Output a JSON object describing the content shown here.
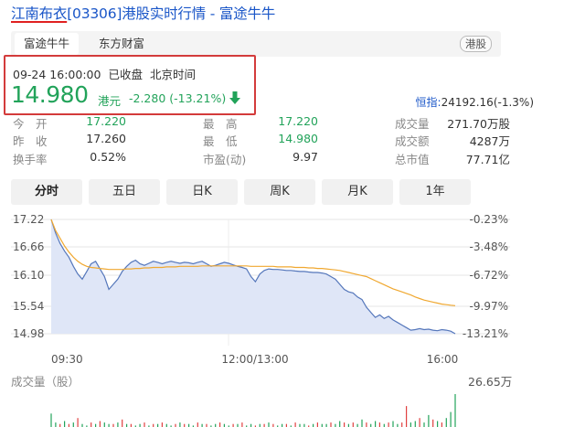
{
  "header": {
    "stock_name": "江南布衣",
    "code": "[03306]",
    "suffix": "港股实时行情 - 富途牛牛"
  },
  "tabs": [
    {
      "label": "富途牛牛",
      "active": true
    },
    {
      "label": "东方财富",
      "active": false
    }
  ],
  "market_badge": "港股",
  "quote": {
    "datetime": "09-24 16:00:00",
    "status": "已收盘",
    "timezone": "北京时间",
    "price": "14.980",
    "currency": "港元",
    "change": "-2.280 (-13.21%)",
    "direction_icon": "down-arrow-icon",
    "color": "#22a35a"
  },
  "index": {
    "label": "恒指:",
    "value": "24192.16(-1.3%)"
  },
  "stats": [
    [
      {
        "label": "今　开",
        "value": "17.220"
      },
      {
        "label": "最　高",
        "value": "17.220"
      },
      {
        "label": "成交量",
        "value": "271.70万股"
      }
    ],
    [
      {
        "label": "昨　收",
        "value": "17.260"
      },
      {
        "label": "最　低",
        "value": "14.980"
      },
      {
        "label": "成交额",
        "value": "4287万"
      }
    ],
    [
      {
        "label": "换手率",
        "value": "0.52%"
      },
      {
        "label": "市盈(动)",
        "value": "9.97"
      },
      {
        "label": "总市值",
        "value": "77.71亿"
      }
    ]
  ],
  "periods": [
    {
      "label": "分时",
      "active": true
    },
    {
      "label": "五日",
      "active": false
    },
    {
      "label": "日K",
      "active": false
    },
    {
      "label": "周K",
      "active": false
    },
    {
      "label": "月K",
      "active": false
    },
    {
      "label": "1年",
      "active": false
    }
  ],
  "chart_data": {
    "type": "line",
    "y_ticks": [
      "17.22",
      "16.66",
      "16.10",
      "15.54",
      "14.98"
    ],
    "y_pct_ticks": [
      "-0.23%",
      "-3.48%",
      "-6.72%",
      "-9.97%",
      "-13.21%"
    ],
    "x_ticks": [
      "09:30",
      "12:00/13:00",
      "16:00"
    ],
    "ylim": [
      14.98,
      17.22
    ],
    "colors": {
      "price": "#5577bb",
      "fill": "#dfe6f7",
      "avg": "#f0a830",
      "up": "#e04040",
      "down": "#22a35a"
    },
    "series": [
      {
        "values": [
          17.22,
          16.95,
          16.75,
          16.6,
          16.48,
          16.3,
          16.15,
          16.05,
          16.2,
          16.35,
          16.4,
          16.25,
          16.1,
          15.85,
          15.95,
          16.05,
          16.2,
          16.3,
          16.38,
          16.42,
          16.35,
          16.32,
          16.36,
          16.4,
          16.38,
          16.35,
          16.38,
          16.4,
          16.38,
          16.36,
          16.38,
          16.37,
          16.35,
          16.38,
          16.4,
          16.35,
          16.3,
          16.32,
          16.35,
          16.38,
          16.36,
          16.33,
          16.3,
          16.28,
          16.25,
          16.1,
          16.0,
          16.15,
          16.22,
          16.25,
          16.24,
          16.24,
          16.23,
          16.22,
          16.22,
          16.21,
          16.2,
          16.2,
          16.19,
          16.18,
          16.18,
          16.17,
          16.15,
          16.1,
          16.05,
          15.95,
          15.85,
          15.8,
          15.78,
          15.7,
          15.65,
          15.5,
          15.4,
          15.3,
          15.35,
          15.28,
          15.32,
          15.25,
          15.2,
          15.15,
          15.1,
          15.05,
          15.06,
          15.08,
          15.06,
          15.07,
          15.05,
          15.04,
          15.06,
          15.05,
          15.03,
          14.98
        ]
      },
      {
        "values": [
          17.22,
          17.0,
          16.85,
          16.7,
          16.58,
          16.48,
          16.4,
          16.34,
          16.3,
          16.28,
          16.27,
          16.26,
          16.25,
          16.24,
          16.24,
          16.24,
          16.24,
          16.25,
          16.25,
          16.26,
          16.26,
          16.27,
          16.27,
          16.28,
          16.28,
          16.28,
          16.29,
          16.29,
          16.29,
          16.3,
          16.3,
          16.3,
          16.3,
          16.3,
          16.31,
          16.31,
          16.31,
          16.31,
          16.31,
          16.31,
          16.31,
          16.31,
          16.31,
          16.31,
          16.31,
          16.3,
          16.3,
          16.3,
          16.3,
          16.3,
          16.3,
          16.29,
          16.29,
          16.29,
          16.29,
          16.28,
          16.28,
          16.28,
          16.27,
          16.27,
          16.26,
          16.26,
          16.25,
          16.24,
          16.23,
          16.22,
          16.2,
          16.18,
          16.16,
          16.14,
          16.12,
          16.1,
          16.06,
          16.02,
          15.98,
          15.94,
          15.9,
          15.86,
          15.83,
          15.8,
          15.77,
          15.74,
          15.7,
          15.67,
          15.64,
          15.62,
          15.6,
          15.58,
          15.56,
          15.55,
          15.54,
          15.53
        ]
      }
    ],
    "volume_max": "26.65万",
    "volume_label": "成交量（股）",
    "volume": [
      9,
      3,
      2,
      4,
      2,
      3,
      6,
      2,
      1,
      3,
      2,
      4,
      3,
      2,
      2,
      3,
      5,
      2,
      2,
      1,
      2,
      3,
      1,
      2,
      2,
      3,
      2,
      1,
      2,
      3,
      2,
      2,
      1,
      3,
      2,
      2,
      1,
      2,
      3,
      2,
      1,
      2,
      2,
      3,
      1,
      2,
      1,
      2,
      2,
      3,
      2,
      1,
      2,
      2,
      1,
      3,
      2,
      2,
      1,
      2,
      3,
      2,
      2,
      3,
      2,
      4,
      3,
      2,
      3,
      2,
      5,
      3,
      2,
      4,
      3,
      2,
      3,
      4,
      2,
      3,
      14,
      3,
      4,
      6,
      3,
      8,
      5,
      4,
      3,
      6,
      10,
      22
    ],
    "volume_up": [
      0,
      0,
      1,
      0,
      1,
      0,
      1,
      0,
      0,
      1,
      0,
      1,
      0,
      0,
      1,
      0,
      1,
      0,
      1,
      0,
      0,
      1,
      0,
      1,
      0,
      1,
      0,
      0,
      1,
      0,
      1,
      0,
      0,
      1,
      0,
      1,
      0,
      0,
      1,
      0,
      0,
      1,
      0,
      1,
      0,
      0,
      1,
      0,
      1,
      0,
      1,
      0,
      0,
      1,
      0,
      1,
      0,
      0,
      1,
      0,
      1,
      0,
      0,
      1,
      0,
      0,
      1,
      0,
      1,
      0,
      0,
      1,
      0,
      0,
      1,
      0,
      1,
      0,
      0,
      1,
      1,
      0,
      0,
      1,
      0,
      0,
      1,
      0,
      1,
      0,
      0,
      0
    ]
  }
}
